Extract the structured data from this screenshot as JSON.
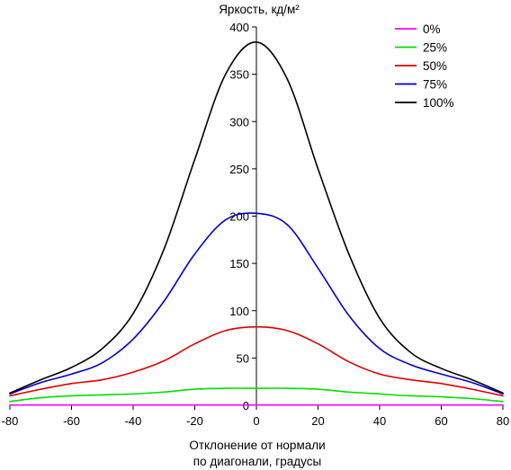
{
  "chart_data": {
    "type": "line",
    "ylabel": "Яркость, кд/м²",
    "xlabel_line1": "Отклонение от нормали",
    "xlabel_line2": "по диагонали, градусы",
    "xlim": [
      -80,
      80
    ],
    "ylim": [
      0,
      400
    ],
    "xticks": [
      -80,
      -60,
      -40,
      -20,
      0,
      20,
      40,
      60,
      80
    ],
    "yticks": [
      0,
      50,
      100,
      150,
      200,
      250,
      300,
      350,
      400
    ],
    "legend_position": "top-right",
    "grid": false,
    "x": [
      -80,
      -70,
      -60,
      -50,
      -40,
      -30,
      -20,
      -10,
      0,
      10,
      20,
      30,
      40,
      50,
      60,
      70,
      80
    ],
    "series": [
      {
        "name": "0%",
        "color": "#ff00ff",
        "values": [
          0.3,
          0.3,
          0.3,
          0.3,
          0.3,
          0.3,
          0.3,
          0.3,
          0.3,
          0.3,
          0.3,
          0.3,
          0.3,
          0.3,
          0.3,
          0.3,
          0.3
        ]
      },
      {
        "name": "25%",
        "color": "#00e000",
        "values": [
          4,
          8,
          10,
          11,
          12,
          14,
          17,
          18,
          18,
          18,
          17,
          14,
          12,
          10,
          9,
          7,
          4
        ]
      },
      {
        "name": "50%",
        "color": "#e00000",
        "values": [
          10,
          17,
          23,
          27,
          35,
          47,
          65,
          79,
          83,
          79,
          65,
          46,
          33,
          27,
          23,
          17,
          10
        ]
      },
      {
        "name": "75%",
        "color": "#0000cc",
        "values": [
          12,
          24,
          33,
          45,
          70,
          110,
          160,
          196,
          203,
          191,
          145,
          95,
          60,
          43,
          33,
          24,
          12
        ]
      },
      {
        "name": "100%",
        "color": "#000000",
        "values": [
          13,
          27,
          40,
          60,
          97,
          165,
          260,
          350,
          384,
          345,
          250,
          160,
          92,
          56,
          39,
          27,
          13
        ]
      }
    ]
  }
}
